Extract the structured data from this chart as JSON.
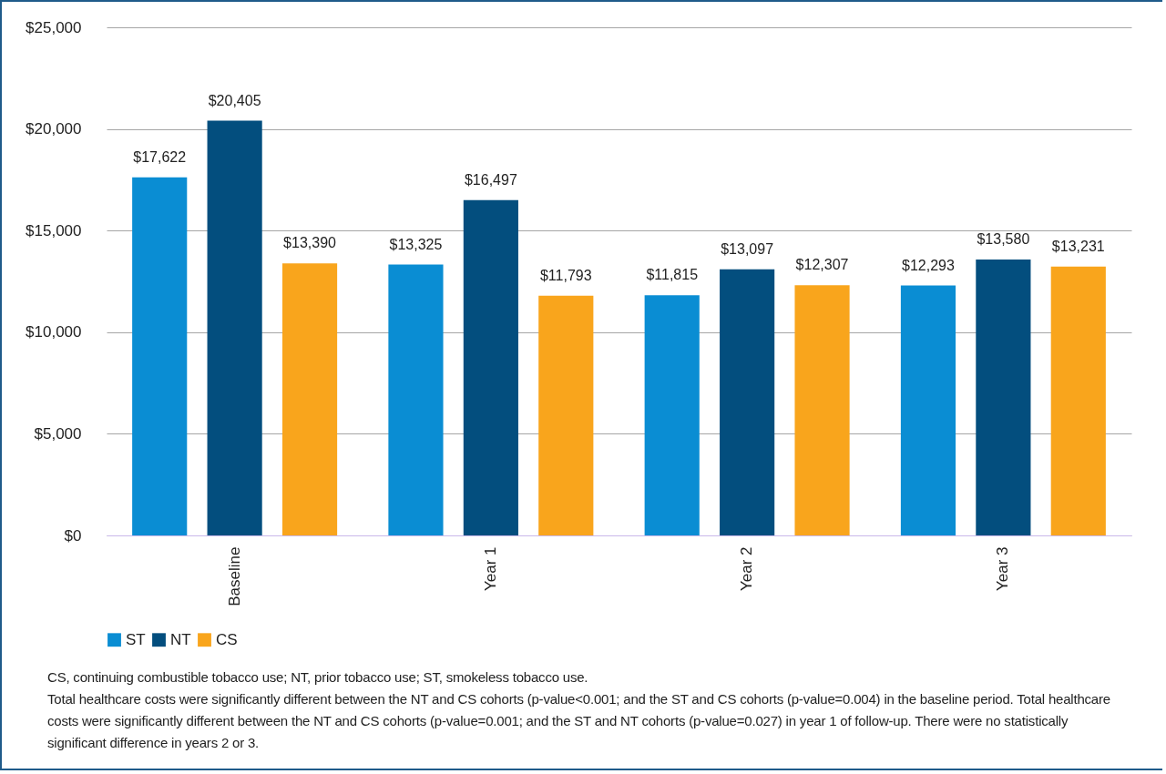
{
  "chart_data": {
    "type": "bar",
    "categories": [
      "Baseline",
      "Year 1",
      "Year 2",
      "Year 3"
    ],
    "series": [
      {
        "name": "ST",
        "color": "#0a8dd3",
        "values": [
          17622,
          13325,
          11815,
          12293
        ],
        "value_labels": [
          "$17,622",
          "$13,325",
          "$11,815",
          "$12,293"
        ]
      },
      {
        "name": "NT",
        "color": "#034e7e",
        "values": [
          20405,
          16497,
          13097,
          13580
        ],
        "value_labels": [
          "$20,405",
          "$16,497",
          "$13,097",
          "$13,580"
        ]
      },
      {
        "name": "CS",
        "color": "#f9a51c",
        "values": [
          13390,
          11793,
          12307,
          13231
        ],
        "value_labels": [
          "$13,390",
          "$11,793",
          "$12,307",
          "$13,231"
        ]
      }
    ],
    "ylim": [
      0,
      25000
    ],
    "yticks": [
      {
        "value": 0,
        "label": "$0"
      },
      {
        "value": 5000,
        "label": "$5,000"
      },
      {
        "value": 10000,
        "label": "$10,000"
      },
      {
        "value": 15000,
        "label": "$15,000"
      },
      {
        "value": 20000,
        "label": "$20,000"
      },
      {
        "value": 25000,
        "label": "$25,000"
      }
    ],
    "grid": "y",
    "legend": "bottom",
    "annotations": [
      "CS, continuing combustible tobacco use; NT, prior tobacco use; ST, smokeless tobacco use.",
      "Total healthcare costs were significantly different between the NT and CS cohorts (p-value<0.001; and the ST and CS cohorts (p-value=0.004) in the baseline period. Total healthcare costs were significantly different between the NT and CS cohorts (p-value=0.001; and the ST and NT cohorts (p-value=0.027) in year 1 of follow-up. There were no statistically significant difference in years 2 or 3."
    ]
  }
}
